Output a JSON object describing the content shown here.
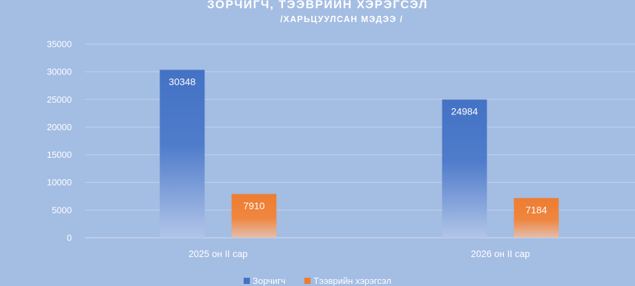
{
  "chart_data": {
    "type": "bar",
    "title": "ЗОРЧИГЧ, ТЭЭВРИЙН ХЭРЭГСЭЛ",
    "subtitle": "/ХАРЬЦУУЛСАН МЭДЭЭ /",
    "categories": [
      "2025 он II сар",
      "2026 он II сар"
    ],
    "series": [
      {
        "name": "Зорчигч",
        "values": [
          30348,
          24984
        ],
        "color": "#4472c4"
      },
      {
        "name": "Тээврийн хэрэгсэл",
        "values": [
          7910,
          7184
        ],
        "color": "#ed7d31"
      }
    ],
    "yticks": [
      "0",
      "5000",
      "10000",
      "15000",
      "20000",
      "25000",
      "30000",
      "35000"
    ],
    "ylim": [
      0,
      35000
    ],
    "grid": true,
    "legend_position": "bottom"
  }
}
